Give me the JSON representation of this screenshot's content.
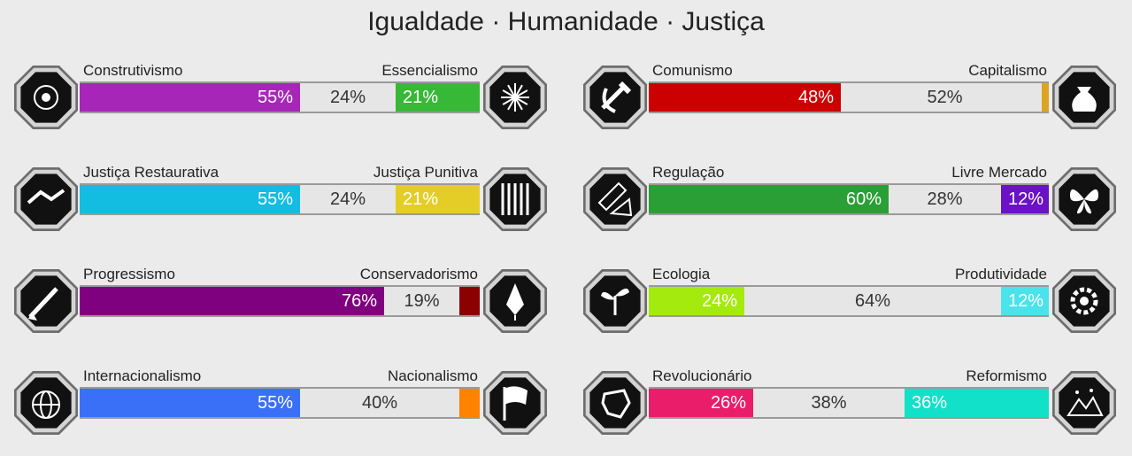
{
  "title": "Igualdade · Humanidade · Justiça",
  "axes": [
    {
      "left_label": "Construtivismo",
      "right_label": "Essencialismo",
      "left_pct": 55,
      "mid_pct": 24,
      "right_pct": 21,
      "left_text": "55%",
      "mid_text": "24%",
      "right_text": "21%",
      "left_color": "#a626b8",
      "right_color": "#37b836",
      "left_icon": "eye-icon",
      "right_icon": "flower-icon"
    },
    {
      "left_label": "Justiça Restaurativa",
      "right_label": "Justiça Punitiva",
      "left_pct": 55,
      "mid_pct": 24,
      "right_pct": 21,
      "left_text": "55%",
      "mid_text": "24%",
      "right_text": "21%",
      "left_color": "#12bde1",
      "right_color": "#e4cd27",
      "left_icon": "handshake-icon",
      "right_icon": "prison-bars-icon"
    },
    {
      "left_label": "Progressismo",
      "right_label": "Conservadorismo",
      "left_pct": 76,
      "mid_pct": 19,
      "right_pct": 5,
      "left_text": "76%",
      "mid_text": "19%",
      "right_text": "",
      "left_color": "#800180",
      "right_color": "#8b0000",
      "left_icon": "rocket-icon",
      "right_icon": "pen-nib-icon"
    },
    {
      "left_label": "Internacionalismo",
      "right_label": "Nacionalismo",
      "left_pct": 55,
      "mid_pct": 40,
      "right_pct": 5,
      "left_text": "55%",
      "mid_text": "40%",
      "right_text": "",
      "left_color": "#3a70f8",
      "right_color": "#ff8200",
      "left_icon": "globe-icon",
      "right_icon": "flag-icon"
    },
    {
      "left_label": "Comunismo",
      "right_label": "Capitalismo",
      "left_pct": 48,
      "mid_pct": 52,
      "right_pct": 0,
      "left_text": "48%",
      "mid_text": "52%",
      "right_text": "",
      "left_color": "#cd0000",
      "right_color": "#daa520",
      "left_icon": "hammer-sickle-icon",
      "right_icon": "money-bag-icon"
    },
    {
      "left_label": "Regulação",
      "right_label": "Livre Mercado",
      "left_pct": 60,
      "mid_pct": 28,
      "right_pct": 12,
      "left_text": "60%",
      "mid_text": "28%",
      "right_text": "12%",
      "left_color": "#2a9f35",
      "right_color": "#6b11c6",
      "left_icon": "ruler-icon",
      "right_icon": "butterfly-icon"
    },
    {
      "left_label": "Ecologia",
      "right_label": "Produtividade",
      "left_pct": 24,
      "mid_pct": 64,
      "right_pct": 12,
      "left_text": "24%",
      "mid_text": "64%",
      "right_text": "12%",
      "left_color": "#a5ea0f",
      "right_color": "#4ae3ec",
      "left_icon": "plant-icon",
      "right_icon": "gear-icon"
    },
    {
      "left_label": "Revolucionário",
      "right_label": "Reformismo",
      "left_pct": 26,
      "mid_pct": 38,
      "right_pct": 36,
      "left_text": "26%",
      "mid_text": "38%",
      "right_text": "36%",
      "left_color": "#ea1d6a",
      "right_color": "#11e1c8",
      "left_icon": "fist-icon",
      "right_icon": "landscape-icon"
    }
  ]
}
